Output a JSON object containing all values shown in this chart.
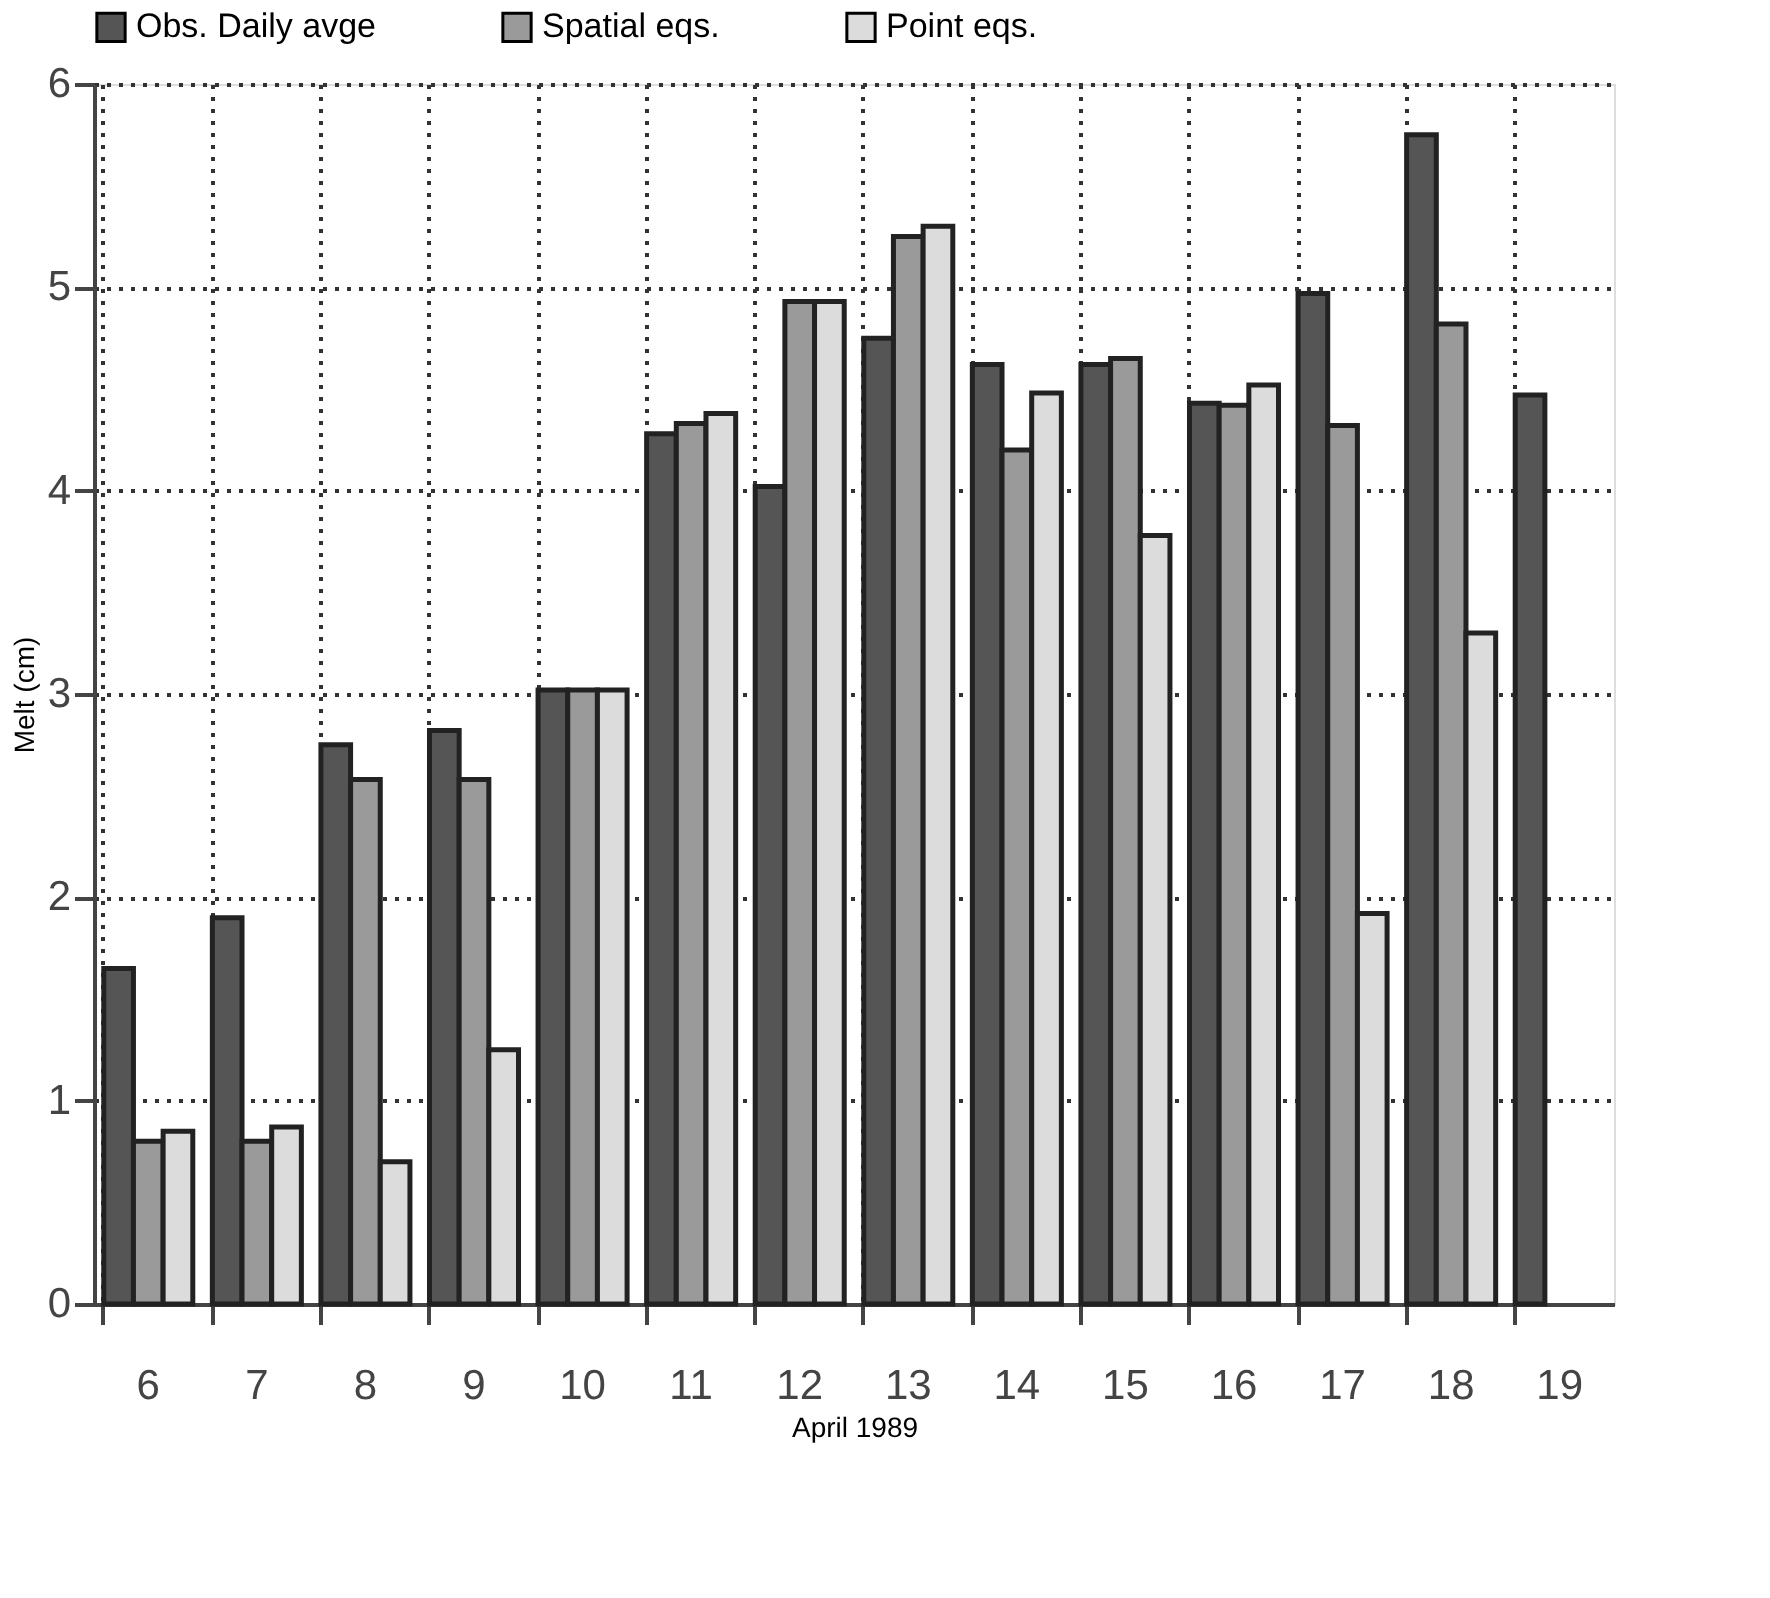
{
  "chart_data": {
    "type": "bar",
    "xlabel": "April  1989",
    "ylabel": "Melt  (cm)",
    "categories": [
      "6",
      "7",
      "8",
      "9",
      "10",
      "11",
      "12",
      "13",
      "14",
      "15",
      "16",
      "17",
      "18",
      "19"
    ],
    "series": [
      {
        "name": "Obs. Daily avge",
        "color": "#555555",
        "values": [
          1.65,
          1.9,
          2.75,
          2.82,
          3.02,
          4.28,
          4.02,
          4.75,
          4.62,
          4.62,
          4.43,
          4.97,
          5.75,
          4.47
        ]
      },
      {
        "name": "Spatial eqs.",
        "color": "#9a9a9a",
        "values": [
          0.8,
          0.8,
          2.58,
          2.58,
          3.02,
          4.33,
          4.93,
          5.25,
          4.2,
          4.65,
          4.42,
          4.32,
          4.82,
          null
        ]
      },
      {
        "name": "Point eqs.",
        "color": "#dcdcdc",
        "values": [
          0.85,
          0.87,
          0.7,
          1.25,
          3.02,
          4.38,
          4.93,
          5.3,
          4.48,
          3.78,
          4.52,
          1.92,
          3.3,
          null
        ]
      }
    ],
    "ylim": [
      0,
      6
    ],
    "yticks": [
      0,
      1,
      2,
      3,
      4,
      5,
      6
    ],
    "grid": true,
    "legend": "top"
  }
}
